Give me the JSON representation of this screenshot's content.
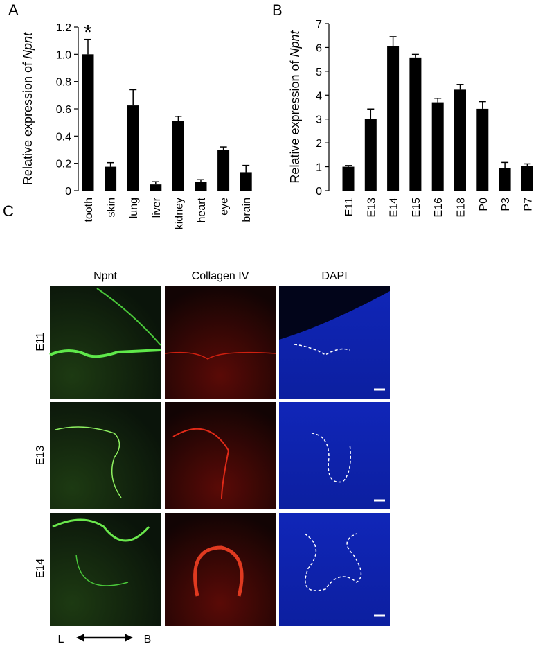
{
  "figure": {
    "panel_labels": [
      "A",
      "B",
      "C"
    ],
    "columns": [
      "Npnt",
      "Collagen IV",
      "DAPI"
    ],
    "rows": [
      "E11",
      "E13",
      "E14"
    ],
    "axis_ends": [
      "L",
      "B"
    ]
  },
  "chart_data": [
    {
      "type": "bar",
      "ylabel": {
        "text": "Relative expression of ",
        "italic": "Npnt"
      },
      "categories": [
        "tooth",
        "skin",
        "lung",
        "liver",
        "kidney",
        "heart",
        "eye",
        "brain"
      ],
      "values": [
        1.0,
        0.175,
        0.625,
        0.045,
        0.51,
        0.065,
        0.3,
        0.135
      ],
      "errors": [
        0.11,
        0.03,
        0.115,
        0.02,
        0.035,
        0.015,
        0.02,
        0.05
      ],
      "annotations": [
        {
          "text": "*",
          "category": 0
        }
      ],
      "color": "#000000",
      "ylim": [
        0,
        1.2
      ],
      "yticks": [
        0,
        0.2,
        0.4,
        0.6,
        0.8,
        {
          "value": 1,
          "label": "1.0"
        },
        1.2
      ]
    },
    {
      "type": "bar",
      "ylabel": {
        "text": "Relative expression of ",
        "italic": "Npnt"
      },
      "categories": [
        "E11",
        "E13",
        "E14",
        "E15",
        "E16",
        "E18",
        "P0",
        "P3",
        "P7"
      ],
      "values": [
        1.0,
        3.02,
        6.07,
        5.58,
        3.7,
        4.23,
        3.43,
        0.93,
        1.02
      ],
      "errors": [
        0.05,
        0.4,
        0.38,
        0.13,
        0.17,
        0.22,
        0.3,
        0.25,
        0.1
      ],
      "color": "#000000",
      "ylim": [
        0,
        7
      ],
      "yticks": [
        0,
        1,
        2,
        3,
        4,
        5,
        6,
        7
      ]
    }
  ]
}
